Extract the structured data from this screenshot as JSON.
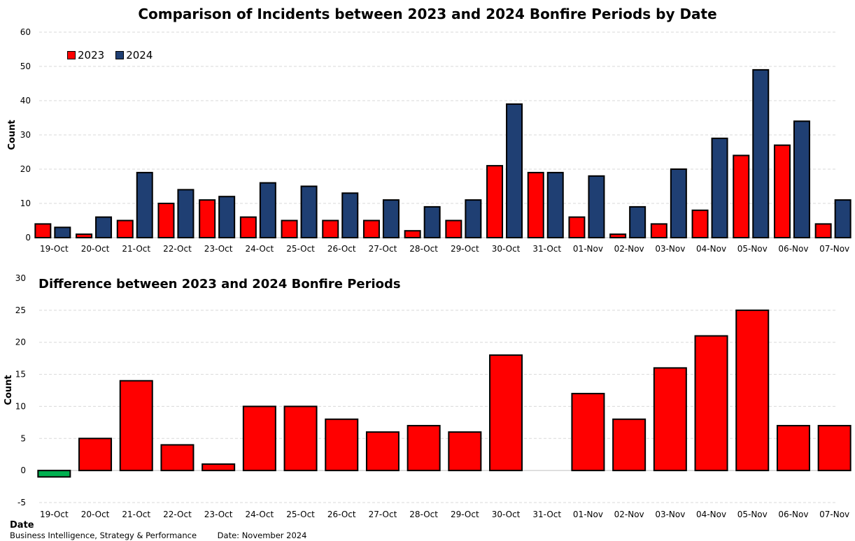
{
  "chart_data": [
    {
      "type": "bar",
      "title": "Comparison of Incidents between 2023 and 2024 Bonfire Periods by Date",
      "ylabel": "Count",
      "ylim": [
        0,
        60
      ],
      "yticks": [
        0,
        10,
        20,
        30,
        40,
        50,
        60
      ],
      "grid": true,
      "legend_position": "top-left",
      "categories": [
        "19-Oct",
        "20-Oct",
        "21-Oct",
        "22-Oct",
        "23-Oct",
        "24-Oct",
        "25-Oct",
        "26-Oct",
        "27-Oct",
        "28-Oct",
        "29-Oct",
        "30-Oct",
        "31-Oct",
        "01-Nov",
        "02-Nov",
        "03-Nov",
        "04-Nov",
        "05-Nov",
        "06-Nov",
        "07-Nov"
      ],
      "series": [
        {
          "name": "2023",
          "color": "#ff0000",
          "values": [
            4,
            1,
            5,
            10,
            11,
            6,
            5,
            5,
            5,
            2,
            5,
            21,
            19,
            6,
            1,
            4,
            8,
            24,
            27,
            4
          ]
        },
        {
          "name": "2024",
          "color": "#1f3f73",
          "values": [
            3,
            6,
            19,
            14,
            12,
            16,
            15,
            13,
            11,
            9,
            11,
            39,
            19,
            18,
            9,
            20,
            29,
            49,
            34,
            11
          ]
        }
      ]
    },
    {
      "type": "bar",
      "title": "Difference between 2023 and 2024 Bonfire Periods",
      "ylabel": "Count",
      "xlabel": "Date",
      "ylim": [
        -5,
        30
      ],
      "yticks": [
        -5,
        0,
        5,
        10,
        15,
        20,
        25,
        30
      ],
      "grid": true,
      "categories": [
        "19-Oct",
        "20-Oct",
        "21-Oct",
        "22-Oct",
        "23-Oct",
        "24-Oct",
        "25-Oct",
        "26-Oct",
        "27-Oct",
        "28-Oct",
        "29-Oct",
        "30-Oct",
        "31-Oct",
        "01-Nov",
        "02-Nov",
        "03-Nov",
        "04-Nov",
        "05-Nov",
        "06-Nov",
        "07-Nov"
      ],
      "values": [
        -1,
        5,
        14,
        4,
        1,
        10,
        10,
        8,
        6,
        7,
        6,
        18,
        0,
        12,
        8,
        16,
        21,
        25,
        7,
        7
      ],
      "positive_color": "#ff0000",
      "negative_color": "#00b050"
    }
  ],
  "footer": {
    "org": "Business Intelligence,  Strategy & Performance",
    "date": "Date: November 2024"
  }
}
